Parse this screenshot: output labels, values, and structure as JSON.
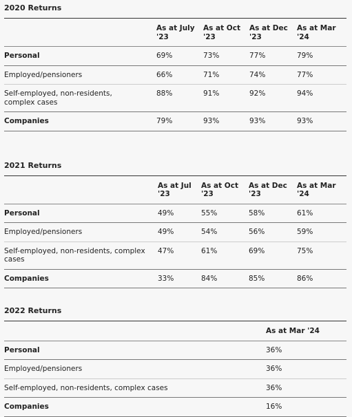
{
  "sections": [
    {
      "title": "2020 Returns",
      "columns": [
        "As at July '23",
        "As at Oct '23",
        "As at Dec '23",
        "As at Mar '24"
      ],
      "rows": [
        {
          "label": "Personal",
          "bold": true,
          "values": [
            "69%",
            "73%",
            "77%",
            "79%"
          ]
        },
        {
          "label": "Employed/pensioners",
          "bold": false,
          "values": [
            "66%",
            "71%",
            "74%",
            "77%"
          ]
        },
        {
          "label": "Self-employed, non-residents, complex cases",
          "bold": false,
          "values": [
            "88%",
            "91%",
            "92%",
            "94%"
          ]
        },
        {
          "label": "Companies",
          "bold": true,
          "values": [
            "79%",
            "93%",
            "93%",
            "93%"
          ]
        }
      ]
    },
    {
      "title": "2021 Returns",
      "columns": [
        "As at Jul '23",
        "As at Oct '23",
        "As at Dec '23",
        "As at Mar '24"
      ],
      "rows": [
        {
          "label": "Personal",
          "bold": true,
          "values": [
            "49%",
            "55%",
            "58%",
            "61%"
          ]
        },
        {
          "label": "Employed/pensioners",
          "bold": false,
          "values": [
            "49%",
            "54%",
            "56%",
            "59%"
          ]
        },
        {
          "label": "Self-employed, non-residents, complex cases",
          "bold": false,
          "values": [
            "47%",
            "61%",
            "69%",
            "75%"
          ]
        },
        {
          "label": "Companies",
          "bold": true,
          "values": [
            "33%",
            "84%",
            "85%",
            "86%"
          ]
        }
      ]
    },
    {
      "title": "2022 Returns",
      "columns": [
        "As at Mar '24"
      ],
      "rows": [
        {
          "label": "Personal",
          "bold": true,
          "values": [
            "36%"
          ]
        },
        {
          "label": "Employed/pensioners",
          "bold": false,
          "values": [
            "36%"
          ]
        },
        {
          "label": "Self-employed, non-residents, complex cases",
          "bold": false,
          "values": [
            "36%"
          ]
        },
        {
          "label": "Companies",
          "bold": true,
          "values": [
            "16%"
          ]
        }
      ]
    }
  ]
}
